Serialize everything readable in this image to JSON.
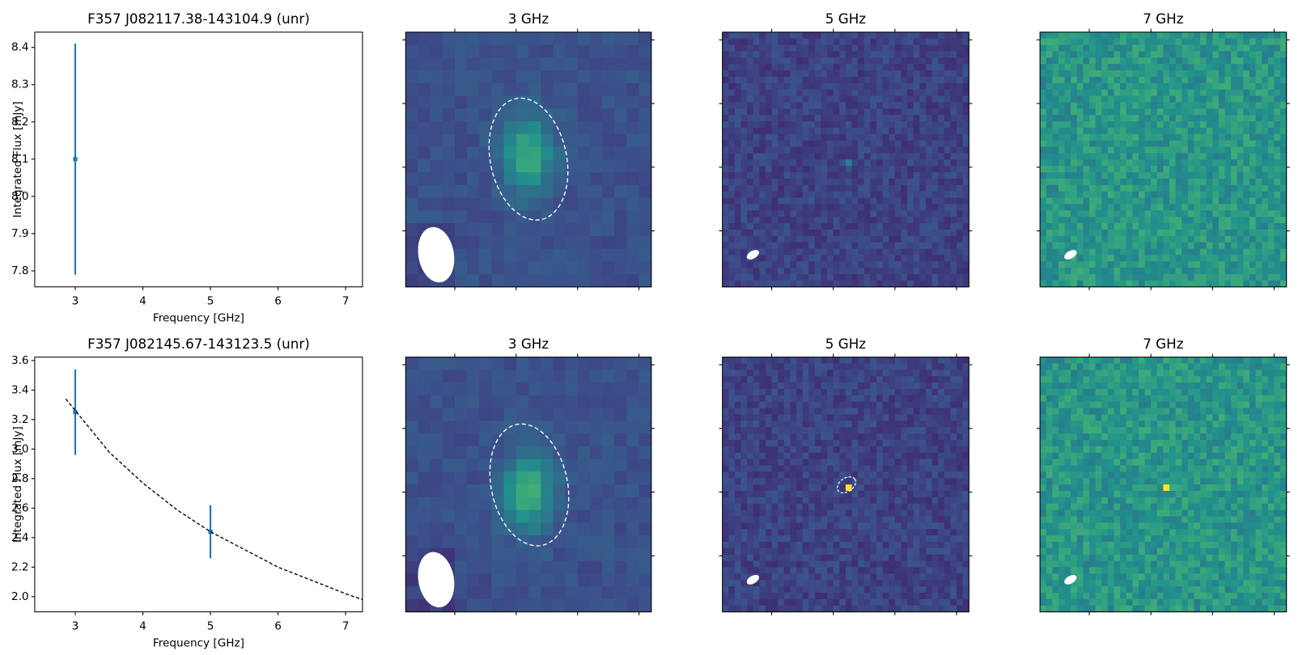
{
  "chart_data": [
    {
      "type": "errorbar",
      "title": "F357 J082117.38-143104.9 (unr)",
      "xlabel": "Frequency [GHz]",
      "ylabel": "Integrated Flux [mJy]",
      "xlim": [
        2.4,
        7.25
      ],
      "xticks": [
        3,
        4,
        5,
        6,
        7
      ],
      "ylim": [
        7.757,
        8.441
      ],
      "yticks": [
        7.8,
        7.9,
        {
          "value": 8,
          "label": "8.0"
        },
        8.1,
        8.2,
        8.3,
        8.4
      ],
      "series": [
        {
          "color": "#1f77b4",
          "x": [
            3
          ],
          "values": [
            8.1
          ],
          "errors": [
            0.31
          ]
        }
      ]
    },
    {
      "type": "image",
      "title": "3 GHz"
    },
    {
      "type": "image",
      "title": "5 GHz"
    },
    {
      "type": "image",
      "title": "7 GHz"
    },
    {
      "type": "errorbar",
      "title": "F357 J082145.67-143123.5 (unr)",
      "xlabel": "Frequency [GHz]",
      "ylabel": "Integrated Flux [mJy]",
      "xlim": [
        2.4,
        7.25
      ],
      "xticks": [
        3,
        4,
        5,
        6,
        7
      ],
      "ylim": [
        1.897,
        3.623
      ],
      "yticks": [
        {
          "value": 2,
          "label": "2.0"
        },
        2.2,
        2.4,
        2.6,
        2.8,
        {
          "value": 3,
          "label": "3.0"
        },
        3.2,
        3.4,
        3.6
      ],
      "series": [
        {
          "color": "#1f77b4",
          "x": [
            3,
            5
          ],
          "values": [
            3.25,
            2.44
          ],
          "errors": [
            0.29,
            0.18
          ]
        },
        {
          "color": "#000000",
          "linestyle": "dashed",
          "x": [
            2.86,
            3.5,
            4,
            4.5,
            5,
            5.5,
            6,
            6.5,
            7,
            7.25
          ],
          "values": [
            3.34,
            2.98,
            2.77,
            2.59,
            2.44,
            2.32,
            2.2,
            2.11,
            2.02,
            1.98
          ]
        }
      ]
    },
    {
      "type": "image",
      "title": "3 GHz"
    },
    {
      "type": "image",
      "title": "5 GHz"
    },
    {
      "type": "image",
      "title": "7 GHz"
    }
  ]
}
